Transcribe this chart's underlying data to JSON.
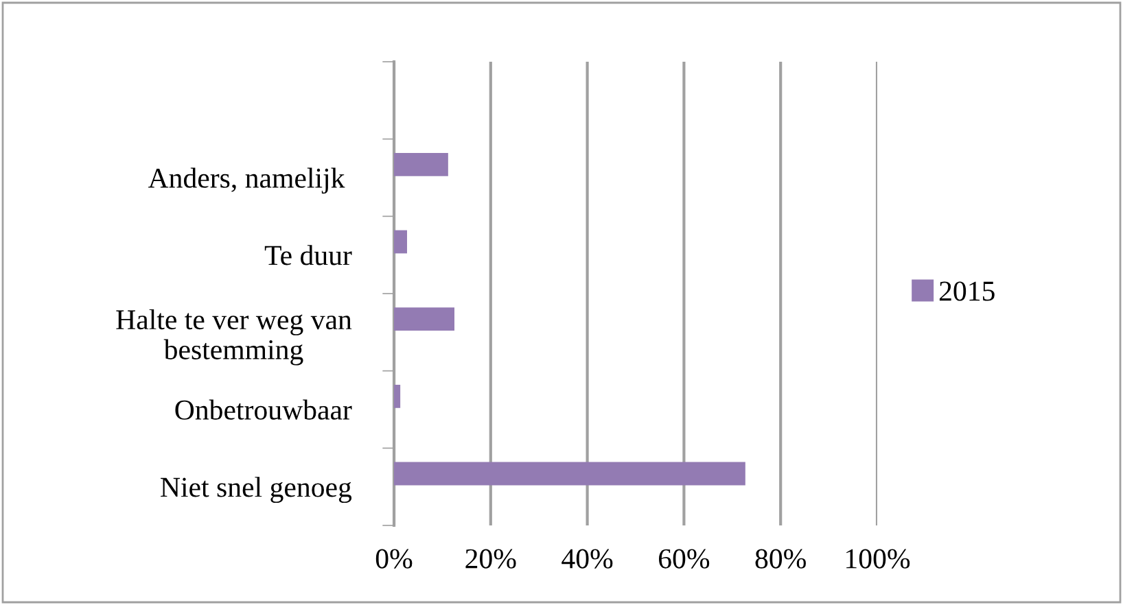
{
  "chart_data": {
    "type": "bar",
    "orientation": "horizontal",
    "categories": [
      null,
      "Anders, namelijk ",
      "Te duur",
      "Halte te ver weg van bestemming",
      "Onbetrouwbaar",
      "Niet snel genoeg"
    ],
    "series": [
      {
        "name": "2015",
        "color": "#937bb3",
        "values": [
          null,
          11.2,
          2.7,
          12.5,
          1.3,
          72.7
        ]
      }
    ],
    "xlim": [
      0,
      100
    ],
    "xticks": [
      {
        "value": 0,
        "label": "0%"
      },
      {
        "value": 20,
        "label": "20%"
      },
      {
        "value": 40,
        "label": "40%"
      },
      {
        "value": 60,
        "label": "60%"
      },
      {
        "value": 80,
        "label": "80%"
      },
      {
        "value": 100,
        "label": "100%"
      }
    ],
    "grid": "x",
    "legend": "right"
  }
}
